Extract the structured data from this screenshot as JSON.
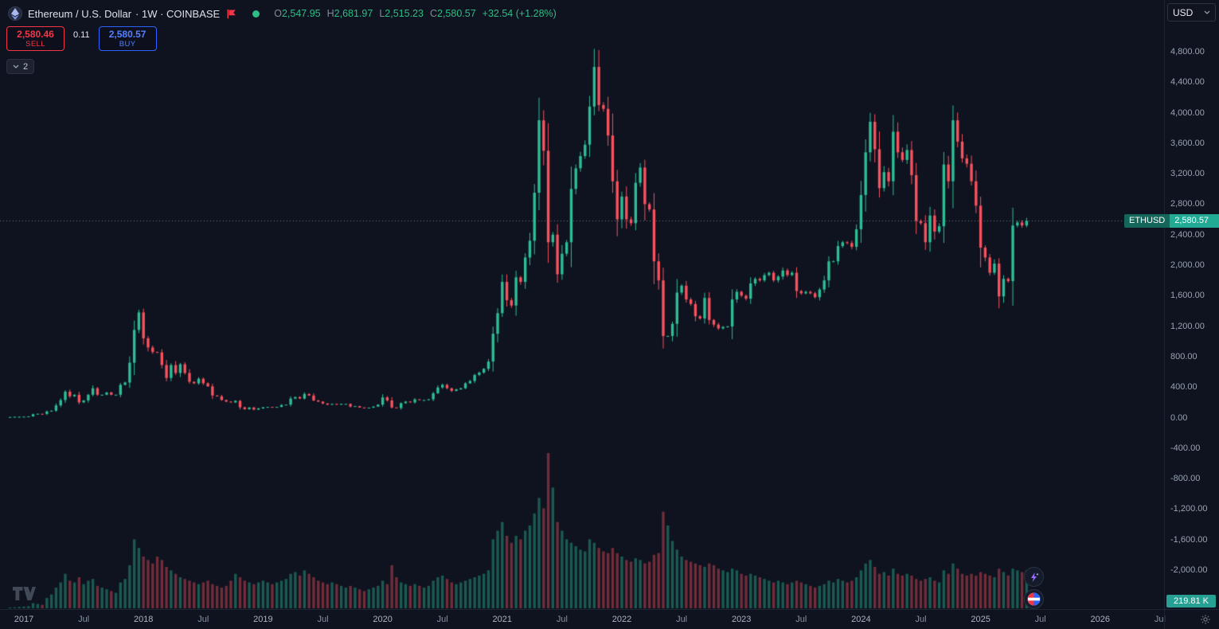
{
  "header": {
    "symbol_title": "Ethereum / U.S. Dollar",
    "interval_exchange": "· 1W · COINBASE",
    "ohlc": {
      "o_label": "O",
      "o": "2,547.95",
      "h_label": "H",
      "h": "2,681.97",
      "l_label": "L",
      "l": "2,515.23",
      "c_label": "C",
      "c": "2,580.57",
      "change": "+32.54 (+1.28%)"
    }
  },
  "trade_panel": {
    "sell_price": "2,580.46",
    "sell_label": "SELL",
    "spread": "0.11",
    "buy_price": "2,580.57",
    "buy_label": "BUY"
  },
  "collapse_chip": {
    "count": "2"
  },
  "currency_selector": {
    "value": "USD"
  },
  "price_label": {
    "symbol": "ETHUSD",
    "value": "2,580.57"
  },
  "volume_label": "219.81 K",
  "price_scale": {
    "ticks": [
      {
        "text": "4,800.00",
        "value": 4800
      },
      {
        "text": "4,400.00",
        "value": 4400
      },
      {
        "text": "4,000.00",
        "value": 4000
      },
      {
        "text": "3,600.00",
        "value": 3600
      },
      {
        "text": "3,200.00",
        "value": 3200
      },
      {
        "text": "2,800.00",
        "value": 2800
      },
      {
        "text": "2,400.00",
        "value": 2400
      },
      {
        "text": "2,000.00",
        "value": 2000
      },
      {
        "text": "1,600.00",
        "value": 1600
      },
      {
        "text": "1,200.00",
        "value": 1200
      },
      {
        "text": "800.00",
        "value": 800
      },
      {
        "text": "400.00",
        "value": 400
      },
      {
        "text": "0.00",
        "value": 0
      },
      {
        "text": "-400.00",
        "value": -400
      },
      {
        "text": "-800.00",
        "value": -800
      },
      {
        "text": "-1,200.00",
        "value": -1200
      },
      {
        "text": "-1,600.00",
        "value": -1600
      },
      {
        "text": "-2,000.00",
        "value": -2000
      }
    ]
  },
  "time_scale": {
    "labels": [
      {
        "text": "2017",
        "t": 0,
        "major": true
      },
      {
        "text": "Jul",
        "t": 0.5,
        "major": false
      },
      {
        "text": "2018",
        "t": 1,
        "major": true
      },
      {
        "text": "Jul",
        "t": 1.5,
        "major": false
      },
      {
        "text": "2019",
        "t": 2,
        "major": true
      },
      {
        "text": "Jul",
        "t": 2.5,
        "major": false
      },
      {
        "text": "2020",
        "t": 3,
        "major": true
      },
      {
        "text": "Jul",
        "t": 3.5,
        "major": false
      },
      {
        "text": "2021",
        "t": 4,
        "major": true
      },
      {
        "text": "Jul",
        "t": 4.5,
        "major": false
      },
      {
        "text": "2022",
        "t": 5,
        "major": true
      },
      {
        "text": "Jul",
        "t": 5.5,
        "major": false
      },
      {
        "text": "2023",
        "t": 6,
        "major": true
      },
      {
        "text": "Jul",
        "t": 6.5,
        "major": false
      },
      {
        "text": "2024",
        "t": 7,
        "major": true
      },
      {
        "text": "Jul",
        "t": 7.5,
        "major": false
      },
      {
        "text": "2025",
        "t": 8,
        "major": true
      },
      {
        "text": "Jul",
        "t": 8.5,
        "major": false
      },
      {
        "text": "2026",
        "t": 9,
        "major": true
      },
      {
        "text": "Jul",
        "t": 9.5,
        "major": false
      }
    ]
  },
  "chart_data": {
    "type": "candlestick",
    "title": "Ethereum / U.S. Dollar · 1W · COINBASE",
    "x_range": [
      "2017-01",
      "2026-07"
    ],
    "y_axis": {
      "min": -2000,
      "max": 4800,
      "step": 400
    },
    "current_price": 2580.57,
    "last_volume": "219.81 K",
    "points_per_year": 26,
    "x_offset_points": -3,
    "closes": [
      8,
      11,
      12,
      13,
      16,
      44,
      50,
      48,
      80,
      90,
      160,
      230,
      340,
      280,
      300,
      200,
      225,
      300,
      385,
      300,
      300,
      330,
      300,
      300,
      430,
      460,
      720,
      1150,
      1380,
      1040,
      920,
      860,
      855,
      690,
      520,
      690,
      585,
      700,
      585,
      470,
      450,
      510,
      450,
      410,
      290,
      280,
      230,
      210,
      200,
      220,
      135,
      110,
      133,
      105,
      120,
      135,
      140,
      135,
      140,
      165,
      170,
      250,
      270,
      250,
      310,
      290,
      225,
      210,
      185,
      170,
      180,
      170,
      180,
      180,
      145,
      150,
      132,
      125,
      130,
      144,
      170,
      265,
      225,
      133,
      125,
      190,
      210,
      200,
      240,
      230,
      230,
      240,
      320,
      395,
      430,
      385,
      350,
      370,
      385,
      450,
      480,
      560,
      590,
      640,
      735,
      1100,
      1370,
      1780,
      1540,
      1470,
      1840,
      1780,
      2100,
      2320,
      2950,
      3900,
      3500,
      2300,
      2400,
      1880,
      2150,
      2300,
      3000,
      3270,
      3430,
      3580,
      4080,
      4600,
      4100,
      4050,
      3700,
      3100,
      2600,
      2900,
      2600,
      2550,
      3080,
      3280,
      2800,
      2730,
      2050,
      1800,
      1070,
      1070,
      1230,
      1640,
      1730,
      1550,
      1490,
      1330,
      1300,
      1570,
      1280,
      1220,
      1170,
      1190,
      1195,
      1550,
      1650,
      1600,
      1560,
      1760,
      1820,
      1800,
      1870,
      1900,
      1800,
      1850,
      1930,
      1870,
      1900,
      1660,
      1630,
      1650,
      1630,
      1580,
      1680,
      1800,
      2050,
      2050,
      2250,
      2300,
      2290,
      2240,
      2470,
      2920,
      3480,
      3880,
      3520,
      3010,
      3220,
      3100,
      3750,
      3480,
      3380,
      3510,
      3180,
      2580,
      2550,
      2300,
      2650,
      2440,
      2510,
      3320,
      3100,
      3900,
      3620,
      3400,
      3330,
      3100,
      2780,
      2230,
      2100,
      1900,
      2020,
      1590,
      1820,
      1790,
      2520,
      2560,
      2520,
      2580.57
    ],
    "volumes_k": [
      5,
      6,
      8,
      10,
      12,
      30,
      25,
      20,
      60,
      80,
      120,
      150,
      200,
      160,
      150,
      180,
      140,
      160,
      170,
      130,
      120,
      110,
      100,
      90,
      150,
      170,
      250,
      400,
      350,
      300,
      280,
      260,
      300,
      280,
      240,
      220,
      200,
      180,
      170,
      160,
      150,
      140,
      150,
      160,
      140,
      130,
      120,
      130,
      160,
      200,
      180,
      160,
      150,
      140,
      150,
      160,
      150,
      140,
      150,
      160,
      170,
      200,
      210,
      190,
      220,
      200,
      180,
      160,
      150,
      140,
      150,
      140,
      130,
      120,
      130,
      120,
      110,
      100,
      110,
      120,
      130,
      160,
      140,
      250,
      180,
      150,
      140,
      130,
      140,
      130,
      120,
      130,
      160,
      180,
      190,
      170,
      150,
      140,
      150,
      160,
      170,
      180,
      190,
      200,
      220,
      400,
      450,
      500,
      420,
      380,
      420,
      400,
      450,
      480,
      550,
      640,
      580,
      900,
      700,
      500,
      450,
      400,
      380,
      360,
      340,
      330,
      400,
      380,
      350,
      330,
      320,
      350,
      320,
      300,
      280,
      270,
      290,
      280,
      260,
      270,
      310,
      320,
      560,
      480,
      390,
      340,
      300,
      280,
      270,
      260,
      250,
      240,
      260,
      250,
      230,
      220,
      210,
      230,
      220,
      200,
      190,
      200,
      190,
      180,
      170,
      160,
      150,
      160,
      150,
      140,
      150,
      160,
      150,
      140,
      130,
      120,
      130,
      140,
      160,
      150,
      170,
      160,
      150,
      160,
      180,
      220,
      260,
      280,
      240,
      200,
      210,
      190,
      230,
      200,
      190,
      200,
      190,
      170,
      160,
      170,
      180,
      160,
      150,
      220,
      200,
      260,
      230,
      200,
      190,
      200,
      190,
      210,
      200,
      190,
      180,
      230,
      210,
      190,
      230,
      220,
      210,
      219.81
    ],
    "colors": {
      "up": "#2ebd95",
      "down": "#f7525f",
      "bg": "#0e131f"
    }
  }
}
